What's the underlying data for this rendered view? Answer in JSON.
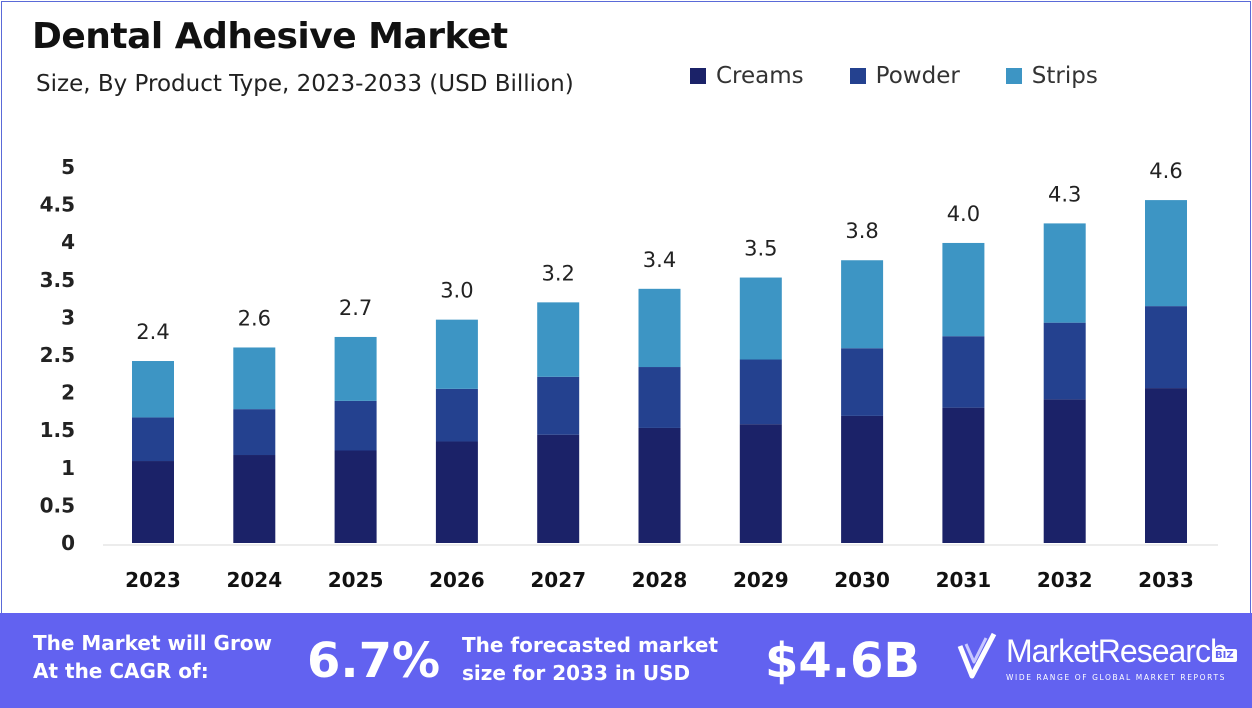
{
  "title": "Dental Adhesive Market",
  "subtitle": "Size, By Product Type, 2023-2033 (USD Billion)",
  "legend": [
    {
      "label": "Creams",
      "color": "#1b2268"
    },
    {
      "label": "Powder",
      "color": "#24418f"
    },
    {
      "label": "Strips",
      "color": "#3d95c4"
    }
  ],
  "chart_data": {
    "type": "bar",
    "stacked": true,
    "categories": [
      "2023",
      "2024",
      "2025",
      "2026",
      "2027",
      "2028",
      "2029",
      "2030",
      "2031",
      "2032",
      "2033"
    ],
    "series": [
      {
        "name": "Creams",
        "color": "#1b2268",
        "values": [
          1.09,
          1.17,
          1.23,
          1.35,
          1.44,
          1.53,
          1.58,
          1.69,
          1.8,
          1.91,
          2.06
        ]
      },
      {
        "name": "Powder",
        "color": "#24418f",
        "values": [
          0.58,
          0.61,
          0.66,
          0.7,
          0.77,
          0.81,
          0.86,
          0.9,
          0.95,
          1.02,
          1.09
        ]
      },
      {
        "name": "Strips",
        "color": "#3d95c4",
        "values": [
          0.75,
          0.82,
          0.85,
          0.92,
          0.99,
          1.04,
          1.09,
          1.17,
          1.24,
          1.32,
          1.41
        ]
      }
    ],
    "totals": [
      "2.4",
      "2.6",
      "2.7",
      "3.0",
      "3.2",
      "3.4",
      "3.5",
      "3.8",
      "4.0",
      "4.3",
      "4.6"
    ],
    "y_ticks": [
      "0",
      "0.5",
      "1",
      "1.5",
      "2",
      "2.5",
      "3",
      "3.5",
      "4",
      "4.5",
      "5"
    ],
    "ylim": [
      0,
      5
    ],
    "grid": false,
    "legend_position": "top-right"
  },
  "banner": {
    "cagr_text_1": "The Market will Grow",
    "cagr_text_2": "At the CAGR of:",
    "cagr_value": "6.7%",
    "forecast_text_1": "The forecasted market",
    "forecast_text_2": "size for 2033 in USD",
    "forecast_value": "$4.6B",
    "logo_name": "MarketResearch",
    "logo_badge": "BIZ",
    "logo_tagline": "WIDE RANGE OF GLOBAL MARKET REPORTS",
    "color": "#6262f0"
  }
}
